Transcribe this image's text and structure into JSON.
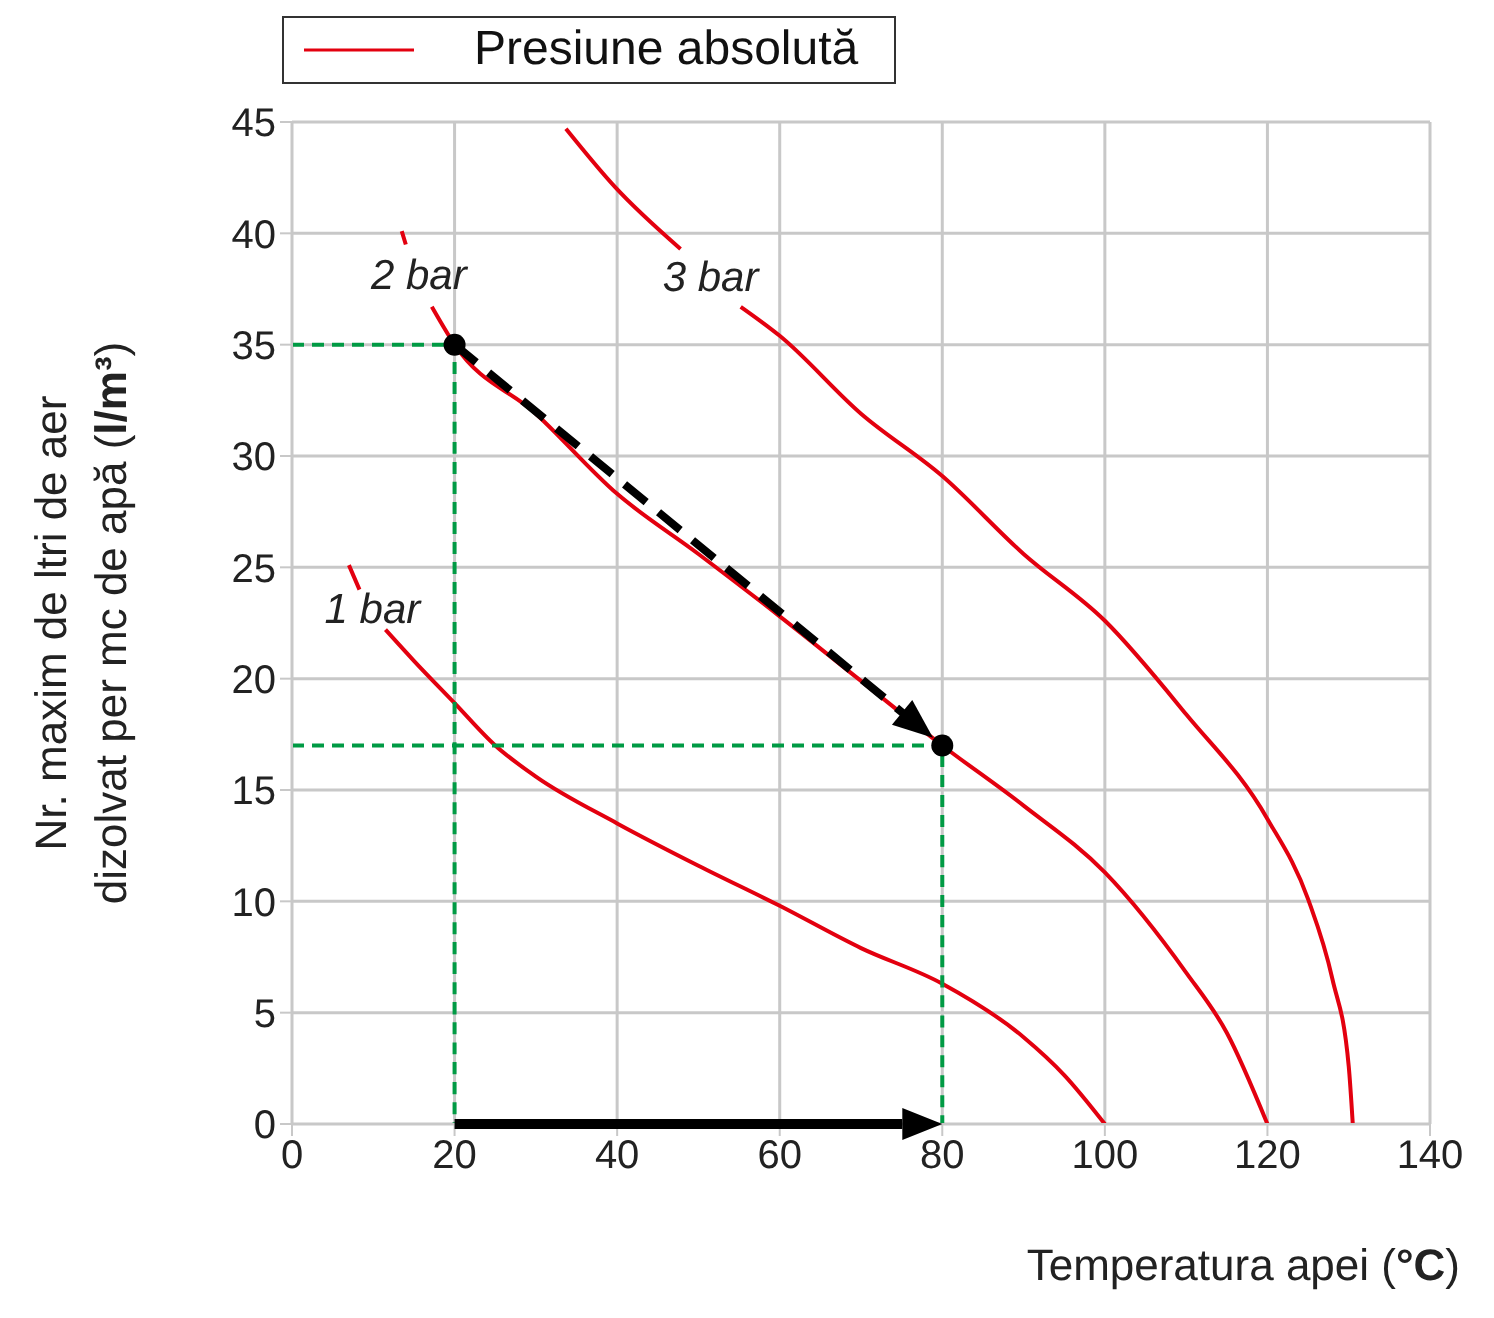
{
  "chart_data": {
    "type": "line",
    "xlabel": "Temperatura apei (°C)",
    "ylabel": "Nr. maxim de ltri de aer dizolvat per mc de apă (l/m³)",
    "xlim": [
      0,
      140
    ],
    "xticks": [
      0,
      20,
      40,
      60,
      80,
      100,
      120,
      140
    ],
    "ylim": [
      0,
      45
    ],
    "yticks": [
      0,
      5,
      10,
      15,
      20,
      25,
      30,
      35,
      40,
      45
    ],
    "grid": true,
    "legend": "top",
    "annotations": [
      "1 bar",
      "2 bar",
      "3 bar"
    ],
    "series": [
      {
        "name": "Presiune absolută",
        "color": "#e3000f",
        "marker": "none",
        "line_style": "solid",
        "x": [
          7,
          8.3,
          null,
          11.5,
          15,
          20,
          25,
          30,
          40,
          50,
          60,
          70,
          80,
          90,
          95,
          100
        ],
        "values": [
          25.1,
          24,
          null,
          22.2,
          20.8,
          18.9,
          17,
          15.6,
          13.5,
          11.6,
          9.8,
          7.9,
          6.3,
          3.9,
          2.2,
          0
        ]
      },
      {
        "color": "#e3000f",
        "marker": "none",
        "line_style": "solid",
        "x": [
          13.5,
          14,
          null,
          17.2,
          20,
          30,
          40,
          50,
          60,
          70,
          80,
          90,
          100,
          110,
          115,
          120
        ],
        "values": [
          40.1,
          39.5,
          null,
          36.7,
          35,
          31.9,
          28.3,
          25.6,
          22.8,
          19.9,
          17,
          14.3,
          11.3,
          6.8,
          4.1,
          0
        ]
      },
      {
        "color": "#e3000f",
        "marker": "none",
        "line_style": "solid",
        "x": [
          33.7,
          39.7,
          47.8,
          null,
          55.2,
          60,
          70,
          80,
          90,
          100,
          110,
          120,
          125,
          128,
          130,
          130.5
        ],
        "values": [
          44.7,
          42.1,
          39.3,
          null,
          36.7,
          35.4,
          31.9,
          29.1,
          25.6,
          22.6,
          18.4,
          13.7,
          10.1,
          6.5,
          2.6,
          0
        ]
      },
      {
        "color": "#009a44",
        "marker": "none",
        "line_style": "dashed",
        "x": [
          0,
          20,
          20
        ],
        "values": [
          35,
          35,
          0
        ]
      },
      {
        "color": "#009a44",
        "marker": "none",
        "line_style": "dashed",
        "x": [
          0,
          80,
          80
        ],
        "values": [
          17,
          17,
          0
        ]
      },
      {
        "type": "scatter",
        "color": "#000000",
        "marker": "circle",
        "x": [
          20,
          80
        ],
        "values": [
          35,
          17
        ]
      }
    ]
  }
}
